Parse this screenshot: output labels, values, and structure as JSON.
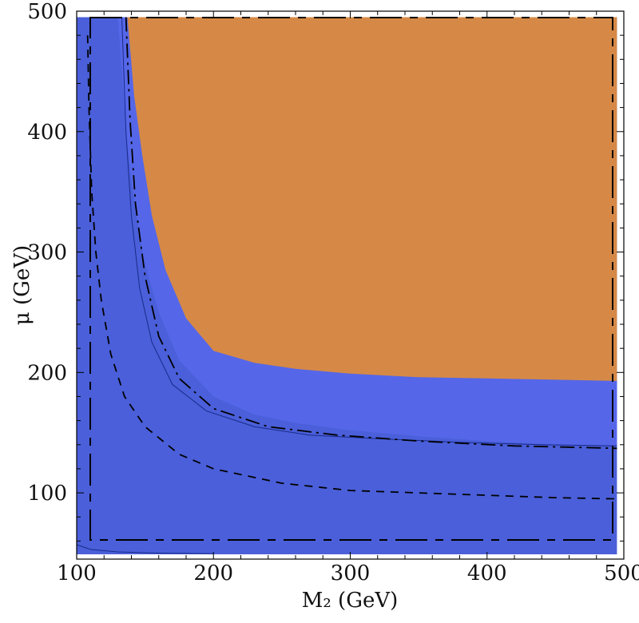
{
  "chart_data": {
    "type": "area",
    "xlabel": "M₂ (GeV)",
    "ylabel": "μ (GeV)",
    "xlim": [
      100,
      500
    ],
    "ylim": [
      45,
      500
    ],
    "x_ticks": [
      100,
      200,
      300,
      400,
      500
    ],
    "y_ticks": [
      100,
      200,
      300,
      400,
      500
    ],
    "grid": false,
    "legend": "none",
    "colors": {
      "blue_outer": "#4a5fd9",
      "blue_inner": "#5567e8",
      "orange": "#d68946",
      "frame": "#000000"
    },
    "regions": [
      {
        "name": "",
        "color": "#4a5fd9",
        "x": [
          100,
          495
        ],
        "y": [
          49,
          495
        ]
      },
      {
        "name": "",
        "color": "#5567e8",
        "x": [
          130,
          133,
          136,
          140,
          145,
          150,
          160,
          175,
          200,
          230,
          260,
          300,
          350,
          400,
          450,
          495,
          495,
          450,
          400,
          350,
          300,
          260,
          230,
          200,
          180,
          165,
          155,
          148,
          142,
          138,
          136
        ],
        "y": [
          495,
          450,
          400,
          360,
          320,
          290,
          250,
          210,
          180,
          165,
          158,
          152,
          147,
          143,
          140,
          139,
          193,
          194,
          196,
          198,
          201,
          205,
          212,
          235,
          268,
          310,
          360,
          410,
          455,
          488,
          495
        ]
      },
      {
        "name": "",
        "color": "#d68946",
        "x": [
          137,
          139,
          142,
          148,
          155,
          165,
          180,
          200,
          230,
          260,
          300,
          350,
          400,
          450,
          495,
          495
        ],
        "y": [
          495,
          470,
          430,
          380,
          330,
          285,
          245,
          218,
          208,
          203,
          199,
          196,
          195,
          194,
          193,
          495
        ]
      }
    ],
    "series": [
      {
        "name": "",
        "style": "dashed",
        "x": [
          108,
          109,
          111,
          114,
          118,
          125,
          135,
          150,
          175,
          200,
          250,
          300,
          350,
          400,
          450,
          495
        ],
        "y": [
          480,
          420,
          350,
          300,
          260,
          215,
          180,
          155,
          132,
          120,
          108,
          102,
          100,
          98,
          96,
          95
        ]
      },
      {
        "name": "",
        "style": "solid-thin",
        "x": [
          133,
          136,
          140,
          146,
          155,
          170,
          195,
          230,
          270,
          320,
          380,
          440,
          495
        ],
        "y": [
          495,
          400,
          330,
          270,
          225,
          190,
          168,
          155,
          148,
          145,
          142,
          140,
          139
        ]
      },
      {
        "name": "",
        "style": "dashdot",
        "x": [
          136,
          139,
          143,
          150,
          160,
          175,
          200,
          240,
          290,
          350,
          420,
          495
        ],
        "y": [
          495,
          410,
          340,
          280,
          230,
          195,
          170,
          155,
          148,
          143,
          139,
          137
        ]
      },
      {
        "name": "",
        "style": "solid-thin",
        "x": [
          100,
          110,
          130,
          160,
          200
        ],
        "y": [
          57,
          53,
          51,
          50,
          49.5
        ]
      }
    ]
  }
}
